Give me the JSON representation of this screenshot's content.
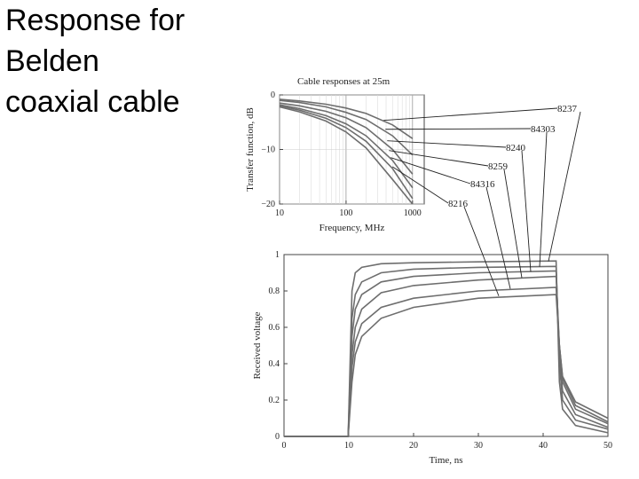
{
  "slide_title_lines": [
    "Response for",
    "Belden",
    "coaxial cable"
  ],
  "chart_data": [
    {
      "type": "line",
      "title": "Cable responses at 25m",
      "xlabel": "Frequency, MHz",
      "ylabel": "Transfer function, dB",
      "xscale": "log",
      "grid": true,
      "x": [
        10,
        20,
        50,
        100,
        200,
        500,
        1000
      ],
      "xlim": [
        10,
        1500
      ],
      "xticks": [
        10,
        100,
        1000
      ],
      "ylim": [
        -20,
        0
      ],
      "yticks": [
        0,
        {
          "value": -10,
          "label": "−10"
        },
        {
          "value": -20,
          "label": "−20"
        }
      ],
      "series": [
        {
          "name": "8237",
          "color": "#6e6e6e",
          "values": [
            -0.8,
            -1.1,
            -1.7,
            -2.4,
            -3.4,
            -5.5,
            -8
          ]
        },
        {
          "name": "84303",
          "color": "#6e6e6e",
          "values": [
            -1,
            -1.4,
            -2.2,
            -3.2,
            -4.5,
            -7.5,
            -11
          ]
        },
        {
          "name": "8240",
          "color": "#6e6e6e",
          "values": [
            -1.5,
            -2,
            -3,
            -4.2,
            -6,
            -10,
            -14.5
          ]
        },
        {
          "name": "8259",
          "color": "#6e6e6e",
          "values": [
            -1.8,
            -2.5,
            -3.8,
            -5.3,
            -7.5,
            -12,
            -17
          ]
        },
        {
          "name": "84316",
          "color": "#6e6e6e",
          "values": [
            -2,
            -2.8,
            -4.3,
            -6,
            -8.5,
            -13.5,
            -19
          ]
        },
        {
          "name": "8216",
          "color": "#6e6e6e",
          "values": [
            -2.2,
            -3.1,
            -4.8,
            -6.8,
            -9.7,
            -15.5,
            -20
          ]
        }
      ]
    },
    {
      "type": "line",
      "xlabel": "Time, ns",
      "ylabel": "Received voltage",
      "grid": false,
      "x": [
        0,
        9.9,
        10.5,
        11,
        12,
        15,
        20,
        30,
        42,
        42.5,
        43,
        45,
        50
      ],
      "xlim": [
        0,
        50
      ],
      "xticks": [
        0,
        10,
        20,
        30,
        40,
        50
      ],
      "ylim": [
        0,
        1
      ],
      "yticks": [
        0,
        0.2,
        0.4,
        0.6,
        0.8,
        1
      ],
      "series": [
        {
          "name": "8237",
          "color": "#6e6e6e",
          "values": [
            0,
            0,
            0.8,
            0.9,
            0.93,
            0.95,
            0.955,
            0.96,
            0.965,
            0.3,
            0.15,
            0.06,
            0.02
          ]
        },
        {
          "name": "84303",
          "color": "#6e6e6e",
          "values": [
            0,
            0,
            0.65,
            0.78,
            0.85,
            0.9,
            0.92,
            0.93,
            0.935,
            0.4,
            0.2,
            0.09,
            0.04
          ]
        },
        {
          "name": "8240",
          "color": "#6e6e6e",
          "values": [
            0,
            0,
            0.55,
            0.7,
            0.78,
            0.85,
            0.88,
            0.9,
            0.91,
            0.45,
            0.25,
            0.12,
            0.05
          ]
        },
        {
          "name": "8259",
          "color": "#6e6e6e",
          "values": [
            0,
            0,
            0.45,
            0.6,
            0.7,
            0.79,
            0.83,
            0.86,
            0.88,
            0.5,
            0.3,
            0.15,
            0.07
          ]
        },
        {
          "name": "84316",
          "color": "#6e6e6e",
          "values": [
            0,
            0,
            0.38,
            0.52,
            0.62,
            0.71,
            0.76,
            0.8,
            0.82,
            0.5,
            0.32,
            0.17,
            0.08
          ]
        },
        {
          "name": "8216",
          "color": "#6e6e6e",
          "values": [
            0,
            0,
            0.3,
            0.45,
            0.55,
            0.65,
            0.71,
            0.76,
            0.78,
            0.5,
            0.33,
            0.19,
            0.1
          ]
        }
      ]
    }
  ]
}
